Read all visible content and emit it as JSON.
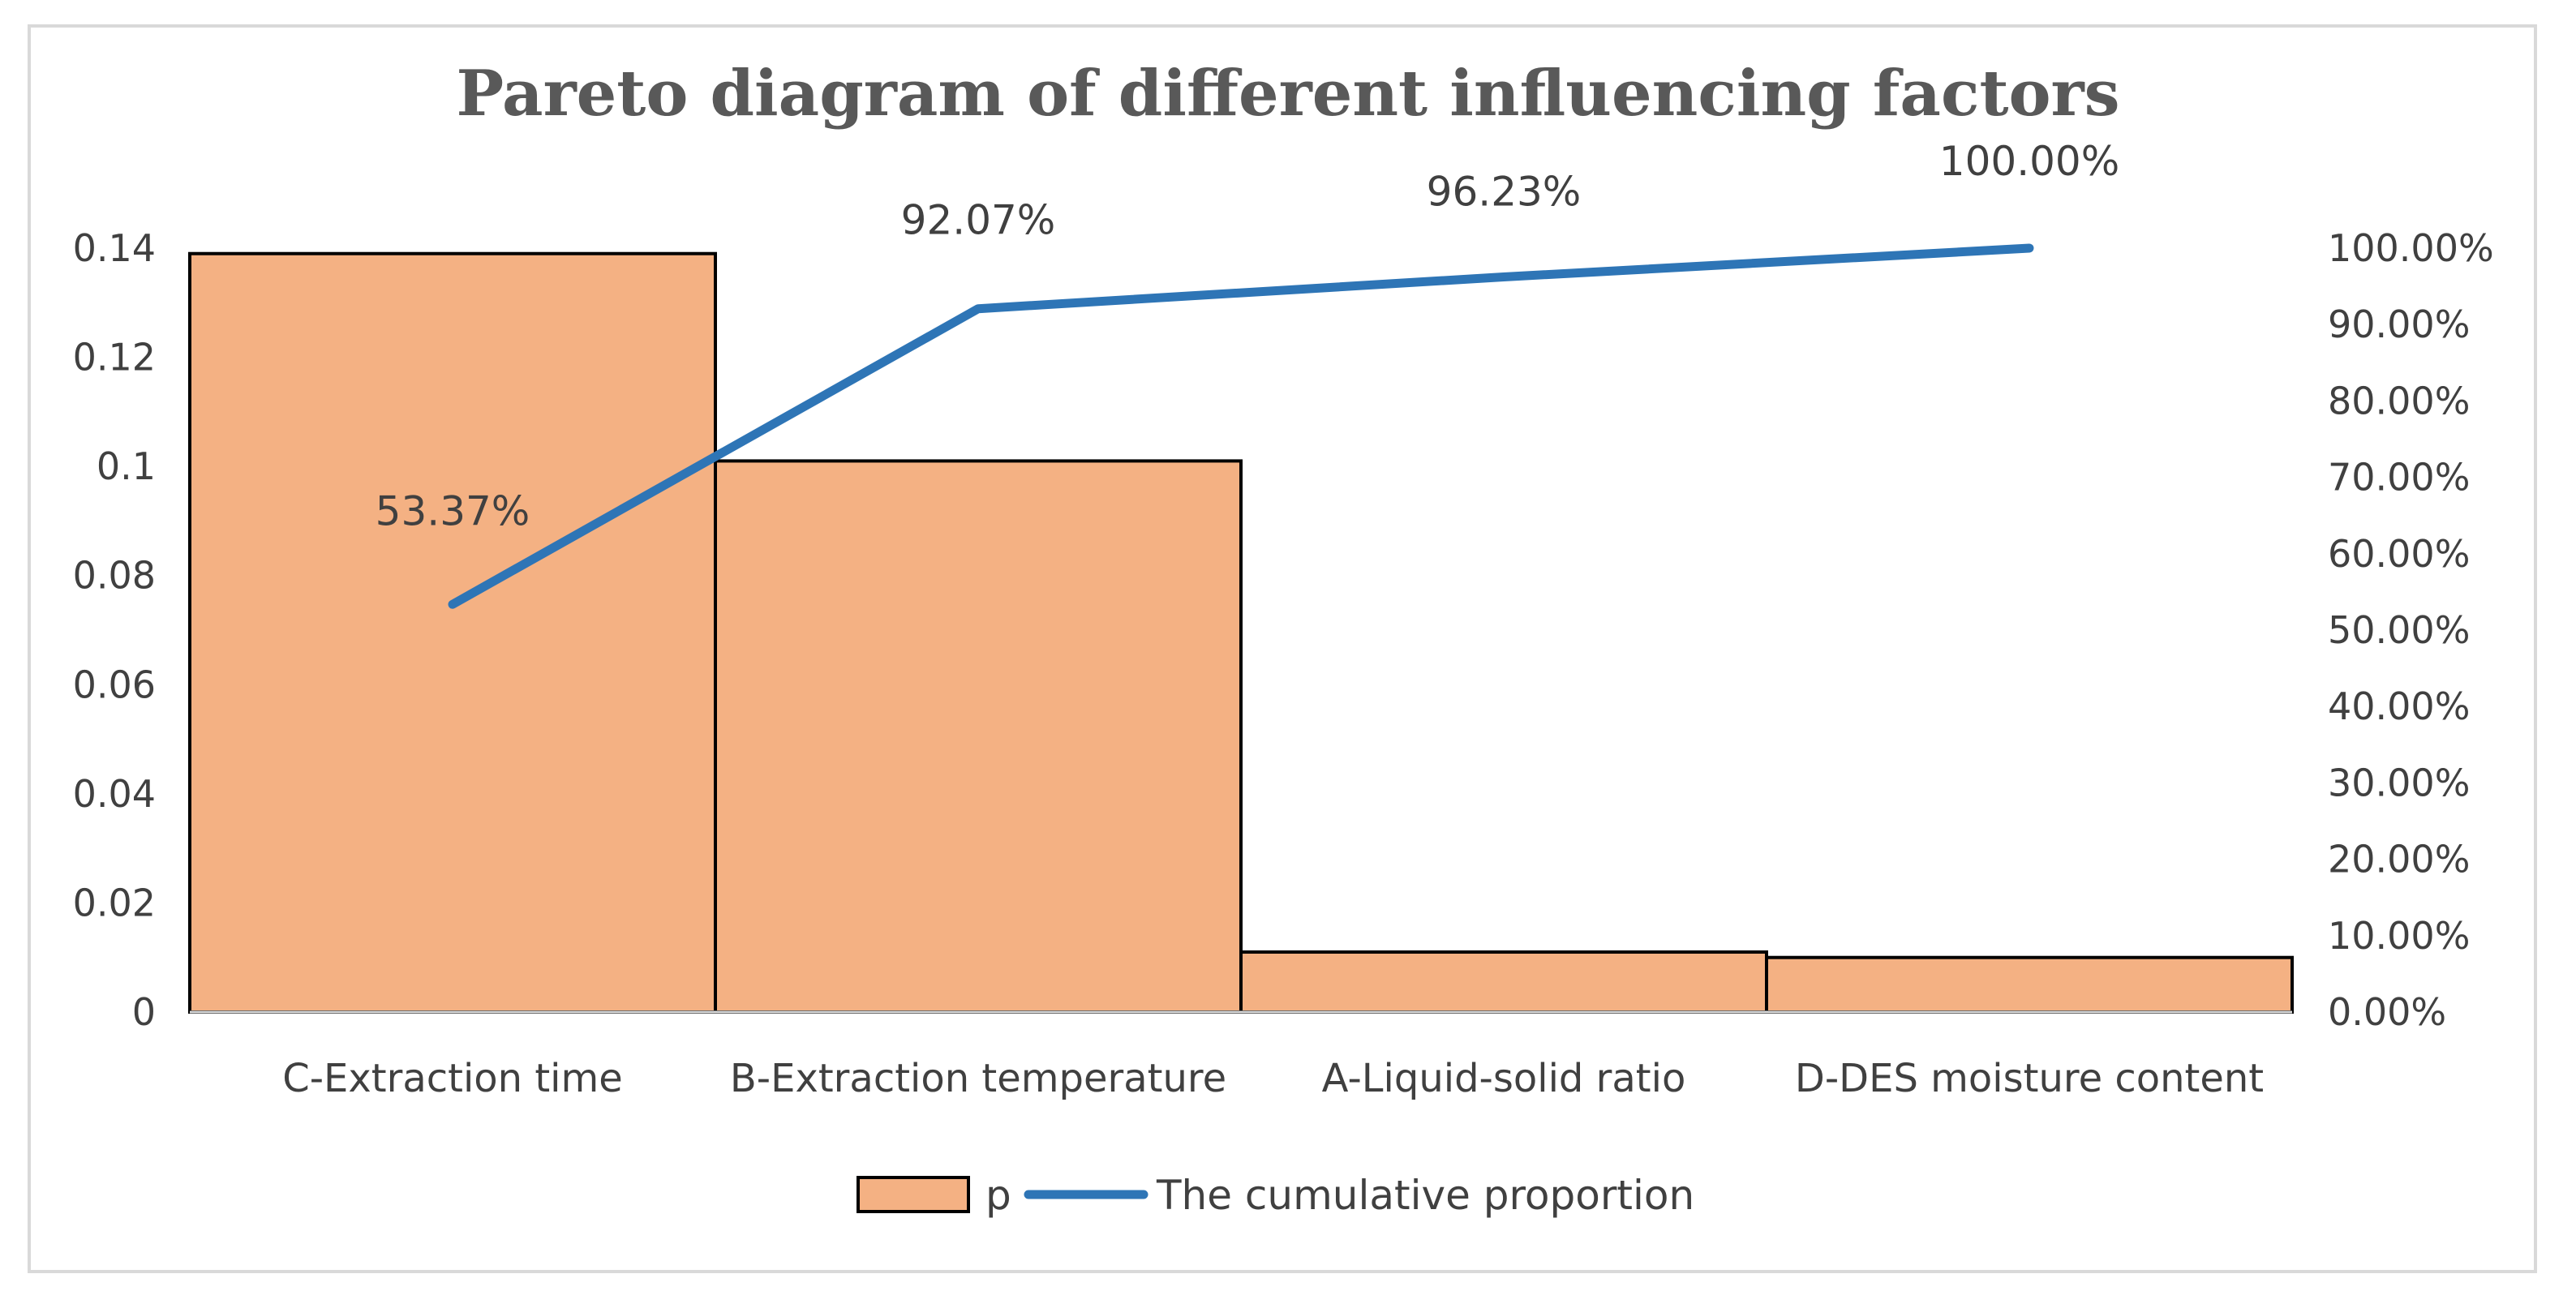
{
  "chart_data": {
    "type": "bar",
    "title": "Pareto diagram of different influencing factors",
    "categories": [
      "C-Extraction time",
      "B-Extraction temperature",
      "A-Liquid-solid ratio",
      "D-DES moisture content"
    ],
    "series": [
      {
        "name": "p",
        "type": "bar",
        "axis": "left",
        "values": [
          0.139,
          0.101,
          0.011,
          0.01
        ]
      },
      {
        "name": "The cumulative proportion",
        "type": "line",
        "axis": "right",
        "values": [
          53.37,
          92.07,
          96.23,
          100.0
        ]
      }
    ],
    "data_labels": [
      "53.37%",
      "92.07%",
      "96.23%",
      "100.00%"
    ],
    "y_left": {
      "ylim": [
        0,
        0.14
      ],
      "ticks": [
        "0",
        "0.02",
        "0.04",
        "0.06",
        "0.08",
        "0.1",
        "0.12",
        "0.14"
      ]
    },
    "y_right": {
      "ylim": [
        0,
        100
      ],
      "ticks": [
        "0.00%",
        "10.00%",
        "20.00%",
        "30.00%",
        "40.00%",
        "50.00%",
        "60.00%",
        "70.00%",
        "80.00%",
        "90.00%",
        "100.00%"
      ]
    },
    "legend": {
      "position": "bottom",
      "entries": [
        "p",
        "The cumulative proportion"
      ]
    },
    "grid": false,
    "colors": {
      "bar_fill": "#f4b183",
      "bar_stroke": "#000000",
      "line": "#2e75b6",
      "text": "#404040",
      "title": "#595959",
      "frame": "#d9d9d9"
    }
  }
}
